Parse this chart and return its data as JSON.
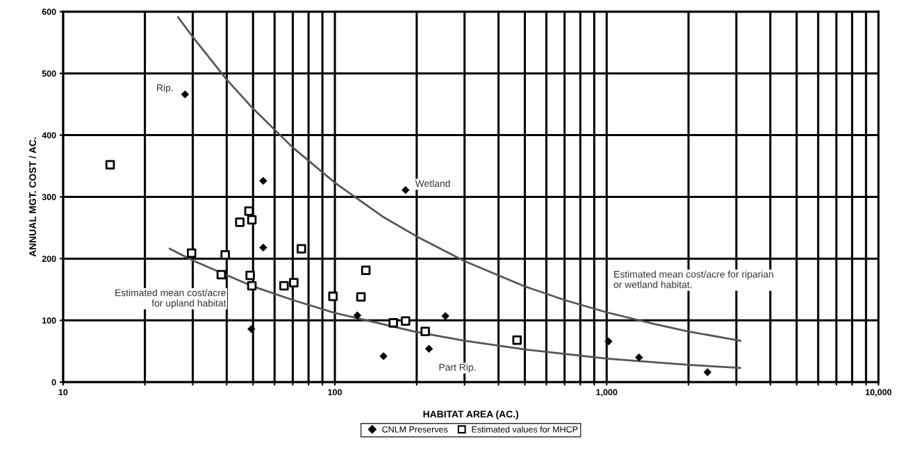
{
  "chart_data": {
    "type": "scatter",
    "xlabel": "HABITAT AREA (AC.)",
    "ylabel": "ANNUAL MGT. COST / AC.",
    "log": "x",
    "xlim": [
      10,
      10000
    ],
    "ylim": [
      0,
      600
    ],
    "xticks": [
      10,
      {
        "value": 20,
        "label": null
      },
      {
        "value": 30,
        "label": null
      },
      {
        "value": 40,
        "label": null
      },
      {
        "value": 50,
        "label": null
      },
      {
        "value": 60,
        "label": null
      },
      {
        "value": 70,
        "label": null
      },
      {
        "value": 80,
        "label": null
      },
      {
        "value": 90,
        "label": null
      },
      100,
      {
        "value": 200,
        "label": null
      },
      {
        "value": 300,
        "label": null
      },
      {
        "value": 400,
        "label": null
      },
      {
        "value": 500,
        "label": null
      },
      {
        "value": 600,
        "label": null
      },
      {
        "value": 700,
        "label": null
      },
      {
        "value": 800,
        "label": null
      },
      {
        "value": 900,
        "label": null
      },
      {
        "value": 1000,
        "label": "1,000"
      },
      {
        "value": 2000,
        "label": null
      },
      {
        "value": 3000,
        "label": null
      },
      {
        "value": 4000,
        "label": null
      },
      {
        "value": 5000,
        "label": null
      },
      {
        "value": 6000,
        "label": null
      },
      {
        "value": 7000,
        "label": null
      },
      {
        "value": 8000,
        "label": null
      },
      {
        "value": 9000,
        "label": null
      },
      {
        "value": 10000,
        "label": "10,000"
      }
    ],
    "yticks": [
      0,
      100,
      200,
      300,
      400,
      500,
      600
    ],
    "grid": true,
    "legend": "bottom",
    "series": [
      {
        "name": "CNLM Preserves",
        "marker": "diamond",
        "color": "#000000",
        "x": [
          28.1,
          54.5,
          54.5,
          49.3,
          182,
          121,
          255,
          222,
          151,
          1016,
          1315,
          2350
        ],
        "values": [
          466,
          326,
          218,
          86,
          311,
          108,
          107,
          54,
          42,
          66,
          40,
          16
        ]
      },
      {
        "name": "Estimated values for MHCP",
        "marker": "square",
        "color": "#000000",
        "x": [
          14.9,
          48.3,
          44.7,
          49.5,
          75.3,
          29.7,
          39.5,
          38.2,
          48.8,
          49.5,
          65.0,
          70.6,
          98.4,
          130,
          124.7,
          164,
          182,
          215,
          468
        ],
        "values": [
          352,
          277,
          259,
          263,
          216,
          209,
          206,
          174,
          173,
          156,
          156,
          161,
          139,
          181,
          138,
          96,
          99,
          82,
          68
        ]
      },
      {
        "type": "line",
        "color": "#555555",
        "x": [
          26.5,
          30,
          40,
          50,
          70,
          100,
          150,
          200,
          300,
          500,
          700,
          1000,
          1500,
          2000,
          3100
        ],
        "values": [
          591,
          559,
          490,
          443,
          380,
          323,
          268,
          236,
          196,
          155,
          133,
          113,
          94,
          82,
          67
        ]
      },
      {
        "type": "line",
        "color": "#555555",
        "x": [
          24.7,
          30,
          50,
          70,
          100,
          200,
          300,
          500,
          1000,
          2000,
          3100
        ],
        "values": [
          216,
          197,
          155,
          133,
          112,
          81,
          67,
          53,
          38,
          28,
          23
        ]
      }
    ],
    "annotations": [
      {
        "text": "Rip.",
        "x": 28.1,
        "y": 466
      },
      {
        "text": "Wetland",
        "x": 182,
        "y": 311
      },
      {
        "text": "Part Rip.",
        "x": 222,
        "y": 54
      },
      "Estimated mean cost/acre\nfor upland habitat",
      "Estimated mean cost/acre for riparian\nor wetland habitat."
    ]
  }
}
